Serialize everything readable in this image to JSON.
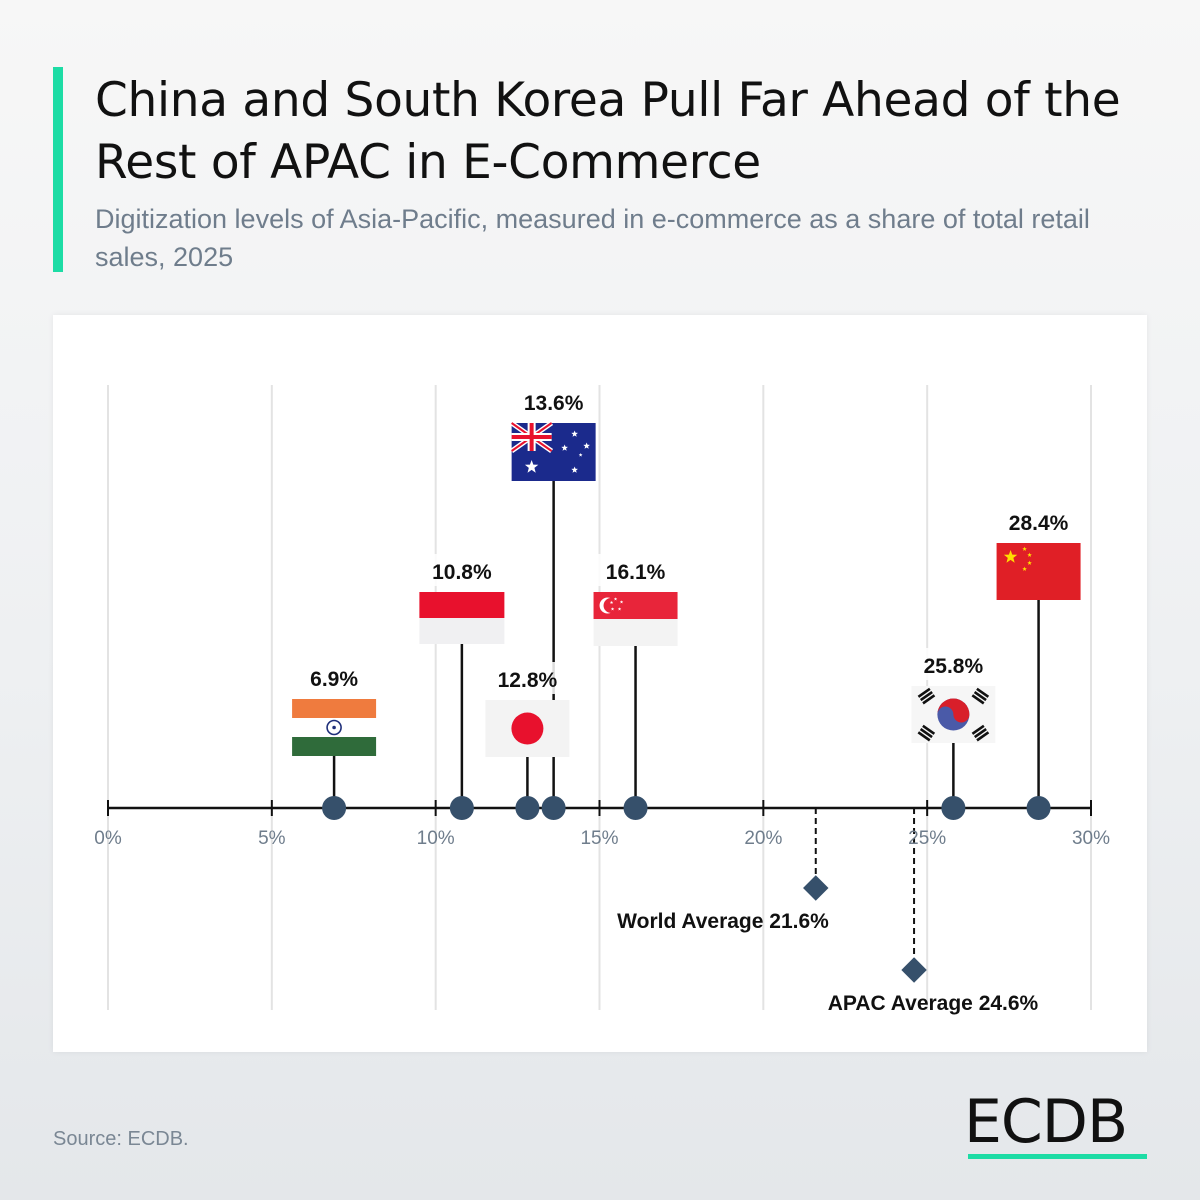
{
  "header": {
    "title": "China and South Korea Pull Far Ahead of the Rest of APAC in E-Commerce",
    "subtitle": "Digitization levels of Asia-Pacific, measured in e-commerce as a share of total retail sales, 2025"
  },
  "footer": {
    "source": "Source: ECDB.",
    "logo_text": "ECDB"
  },
  "colors": {
    "accent": "#1ddca5",
    "marker": "#36506b",
    "axis": "#111111",
    "grid": "#e3e3e3",
    "tick_label": "#6f7d8c"
  },
  "chart_data": {
    "type": "scatter",
    "title": "China and South Korea Pull Far Ahead of the Rest of APAC in E-Commerce",
    "xlim": [
      0,
      30
    ],
    "x_ticks": [
      "0%",
      "5%",
      "10%",
      "15%",
      "20%",
      "25%",
      "30%"
    ],
    "x_tick_values": [
      0,
      5,
      10,
      15,
      20,
      25,
      30
    ],
    "grid": true,
    "points": [
      {
        "value": 6.9,
        "label": "6.9%",
        "flag_icon": "india-flag-icon"
      },
      {
        "value": 10.8,
        "label": "10.8%",
        "flag_icon": "indonesia-flag-icon"
      },
      {
        "value": 12.8,
        "label": "12.8%",
        "flag_icon": "japan-flag-icon"
      },
      {
        "value": 13.6,
        "label": "13.6%",
        "flag_icon": "australia-flag-icon"
      },
      {
        "value": 16.1,
        "label": "16.1%",
        "flag_icon": "singapore-flag-icon"
      },
      {
        "value": 25.8,
        "label": "25.8%",
        "flag_icon": "south-korea-flag-icon"
      },
      {
        "value": 28.4,
        "label": "28.4%",
        "flag_icon": "china-flag-icon"
      }
    ],
    "averages": [
      {
        "value": 21.6,
        "label": "World Average 21.6%"
      },
      {
        "value": 24.6,
        "label": "APAC Average 24.6%"
      }
    ]
  }
}
